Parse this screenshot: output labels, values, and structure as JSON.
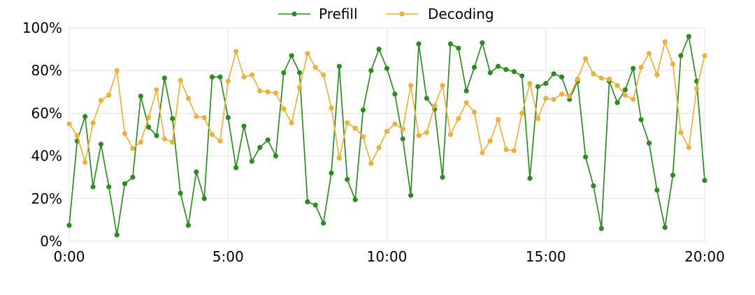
{
  "chart_data": {
    "type": "line",
    "title": "",
    "xlabel": "",
    "ylabel": "",
    "xlim": [
      "0:00",
      "20:00"
    ],
    "ylim": [
      0,
      100
    ],
    "x_tick_labels": [
      "0:00",
      "5:00",
      "10:00",
      "15:00",
      "20:00"
    ],
    "y_tick_labels": [
      "0%",
      "20%",
      "40%",
      "60%",
      "80%",
      "100%"
    ],
    "grid": true,
    "legend_position": "top-center",
    "x_start_minutes": 0,
    "x_step_minutes": 15,
    "series": [
      {
        "name": "Prefill",
        "color": "#2f8a23",
        "values": [
          7.5,
          47,
          58.5,
          25.5,
          45.5,
          25.5,
          3,
          27,
          30,
          68,
          53.5,
          49.5,
          76.5,
          57.5,
          22.5,
          7.5,
          32.5,
          20,
          77,
          77,
          58,
          34.5,
          54,
          37.5,
          44,
          47.5,
          40,
          79,
          87,
          79,
          18.5,
          17,
          8.5,
          32,
          82,
          29,
          19.5,
          61.5,
          80,
          90,
          81,
          69,
          48,
          21.5,
          92.5,
          67,
          62,
          30,
          92.5,
          90.5,
          70.5,
          81.5,
          93,
          79,
          82,
          80.5,
          79.5,
          77.5,
          29.5,
          72.5,
          74,
          78.5,
          77,
          66.5,
          75,
          39.5,
          26,
          6,
          75,
          65,
          71,
          81,
          57,
          46,
          24,
          6.5,
          31,
          87,
          96,
          75,
          28.5
        ]
      },
      {
        "name": "Decoding",
        "color": "#ebb13e",
        "values": [
          55,
          49.5,
          37,
          55.5,
          66,
          68.5,
          80,
          50.5,
          43.5,
          46.5,
          58,
          71,
          48,
          46.5,
          75.5,
          67,
          58.5,
          58,
          50,
          47,
          75,
          89,
          77,
          78,
          70.5,
          70,
          69.5,
          62,
          55.5,
          72,
          88,
          81.5,
          78,
          62.5,
          39,
          55.5,
          53,
          49,
          36.5,
          44,
          51.5,
          55,
          52.5,
          73,
          49.5,
          51,
          63.5,
          73,
          50,
          57.5,
          65,
          60.5,
          41.5,
          47,
          57,
          43,
          42.5,
          60,
          74,
          57.5,
          67,
          66.5,
          69,
          68,
          76,
          85.5,
          78.5,
          76.5,
          76,
          73,
          68.5,
          66.5,
          81.5,
          88,
          78,
          93.5,
          83,
          51,
          44,
          71.5,
          87
        ]
      }
    ]
  }
}
